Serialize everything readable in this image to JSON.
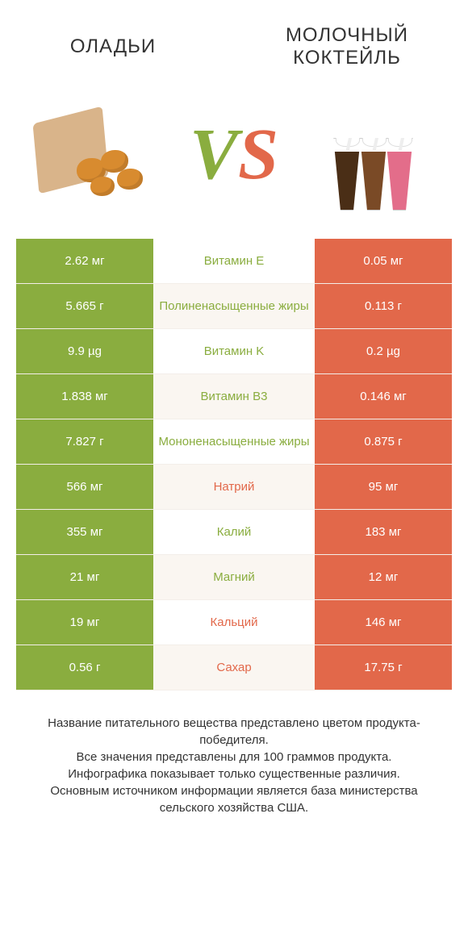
{
  "colors": {
    "green": "#8aad3f",
    "orange": "#e2684a",
    "row_alt_bg": "#faf6f1",
    "text": "#333333",
    "bg": "#ffffff"
  },
  "header": {
    "left_title": "ОЛАДЬИ",
    "right_title": "МОЛОЧНЫЙ КОКТЕЙЛЬ",
    "vs_v": "V",
    "vs_s": "S"
  },
  "rows": [
    {
      "left": "2.62 мг",
      "label": "Витамин E",
      "winner": "green",
      "right": "0.05 мг"
    },
    {
      "left": "5.665 г",
      "label": "Полиненасыщенные жиры",
      "winner": "green",
      "right": "0.113 г"
    },
    {
      "left": "9.9 µg",
      "label": "Витамин K",
      "winner": "green",
      "right": "0.2 µg"
    },
    {
      "left": "1.838 мг",
      "label": "Витамин B3",
      "winner": "green",
      "right": "0.146 мг"
    },
    {
      "left": "7.827 г",
      "label": "Мононенасыщенные жиры",
      "winner": "green",
      "right": "0.875 г"
    },
    {
      "left": "566 мг",
      "label": "Натрий",
      "winner": "orange",
      "right": "95 мг"
    },
    {
      "left": "355 мг",
      "label": "Калий",
      "winner": "green",
      "right": "183 мг"
    },
    {
      "left": "21 мг",
      "label": "Магний",
      "winner": "green",
      "right": "12 мг"
    },
    {
      "left": "19 мг",
      "label": "Кальций",
      "winner": "orange",
      "right": "146 мг"
    },
    {
      "left": "0.56 г",
      "label": "Сахар",
      "winner": "orange",
      "right": "17.75 г"
    }
  ],
  "footer": {
    "line1": "Название питательного вещества представлено цветом продукта-победителя.",
    "line2": "Все значения представлены для 100 граммов продукта.",
    "line3": "Инфографика показывает только существенные различия.",
    "line4": "Основным источником информации является база министерства сельского хозяйства США."
  }
}
